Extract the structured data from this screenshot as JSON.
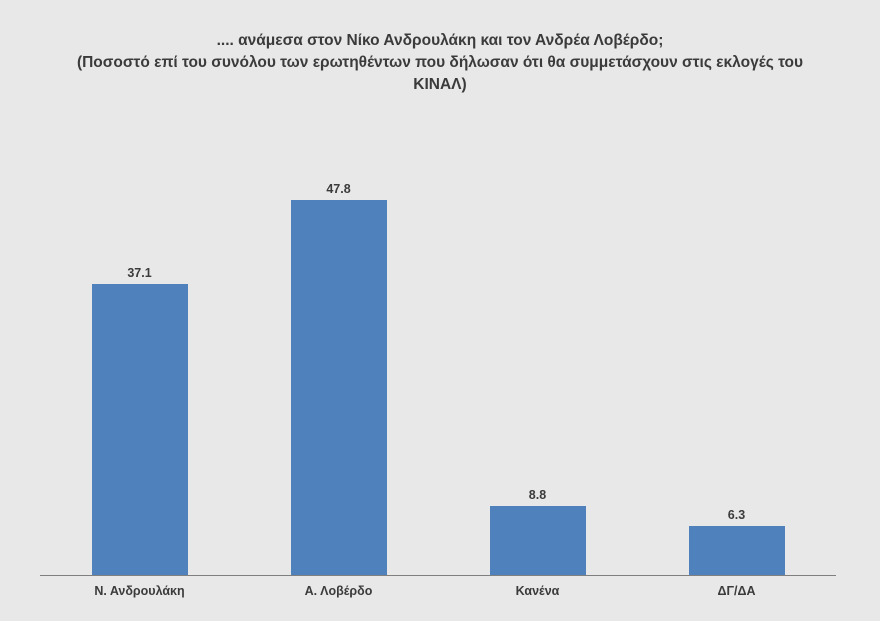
{
  "chart_data": {
    "type": "bar",
    "title": ".... ανάμεσα στον Νίκο Ανδρουλάκη και τον Ανδρέα Λοβέρδο;",
    "subtitle": "(Ποσοστό επί του συνόλου των ερωτηθέντων που δήλωσαν ότι θα συμμετάσχουν στις εκλογές του ΚΙΝΑΛ)",
    "categories": [
      "Ν. Ανδρουλάκη",
      "Α. Λοβέρδο",
      "Κανένα",
      "ΔΓ/ΔΑ"
    ],
    "values": [
      37.1,
      47.8,
      8.8,
      6.3
    ],
    "xlabel": "",
    "ylabel": "",
    "ylim": [
      0,
      50
    ],
    "grid": false,
    "legend": "none",
    "bar_color": "#4f81bd",
    "background_color": "#e8e8e8"
  }
}
